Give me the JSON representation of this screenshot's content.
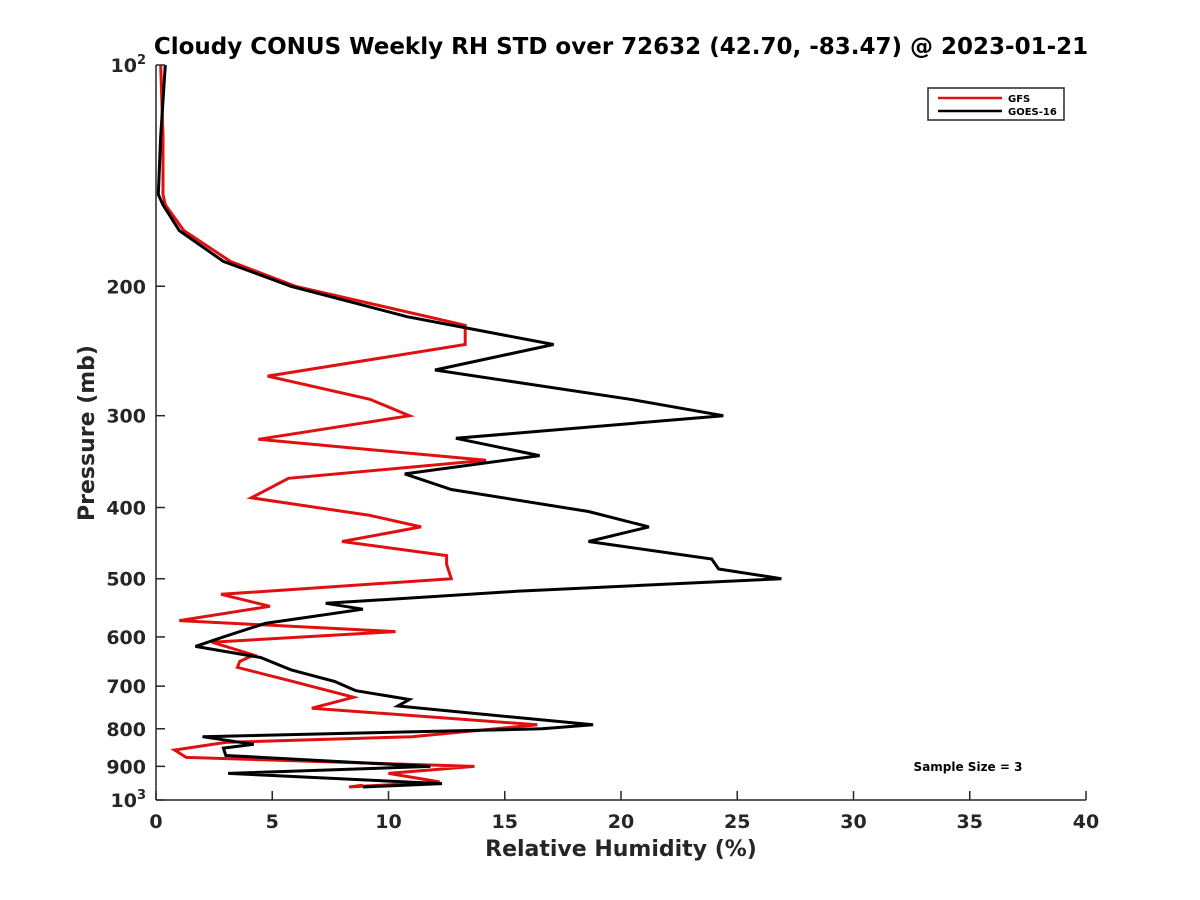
{
  "chart_data": {
    "type": "line",
    "title": "Cloudy CONUS Weekly RH STD over 72632 (42.70, -83.47) @ 2023-01-21",
    "xlabel": "Relative Humidity (%)",
    "ylabel": "Pressure (mb)",
    "xlim": [
      0,
      40
    ],
    "ylim": [
      100,
      1000
    ],
    "y_scale": "log",
    "y_reversed": true,
    "grid": false,
    "legend_placement": "top-right",
    "x_ticks": [
      0,
      5,
      10,
      15,
      20,
      25,
      30,
      35,
      40
    ],
    "y_ticks": [
      {
        "value": 100,
        "label": "10",
        "sup": "2"
      },
      {
        "value": 200,
        "label": "200"
      },
      {
        "value": 300,
        "label": "300"
      },
      {
        "value": 400,
        "label": "400"
      },
      {
        "value": 500,
        "label": "500"
      },
      {
        "value": 600,
        "label": "600"
      },
      {
        "value": 700,
        "label": "700"
      },
      {
        "value": 800,
        "label": "800"
      },
      {
        "value": 900,
        "label": "900"
      },
      {
        "value": 1000,
        "label": "10",
        "sup": "3"
      }
    ],
    "annotation": "Sample Size = 3",
    "series": [
      {
        "name": "GFS",
        "color": "#e01010",
        "points": [
          [
            0.2,
            100
          ],
          [
            0.3,
            125
          ],
          [
            0.3,
            150
          ],
          [
            0.4,
            155
          ],
          [
            1.2,
            168
          ],
          [
            3.2,
            185
          ],
          [
            6.0,
            200
          ],
          [
            13.3,
            226
          ],
          [
            13.3,
            240
          ],
          [
            4.8,
            265
          ],
          [
            9.2,
            285
          ],
          [
            10.9,
            300
          ],
          [
            4.4,
            323
          ],
          [
            14.2,
            345
          ],
          [
            5.7,
            365
          ],
          [
            4.1,
            388
          ],
          [
            9.2,
            410
          ],
          [
            11.4,
            425
          ],
          [
            8.0,
            445
          ],
          [
            12.5,
            465
          ],
          [
            12.5,
            478
          ],
          [
            12.7,
            500
          ],
          [
            2.8,
            525
          ],
          [
            4.9,
            545
          ],
          [
            1.0,
            570
          ],
          [
            10.3,
            590
          ],
          [
            2.4,
            610
          ],
          [
            3.5,
            625
          ],
          [
            4.2,
            635
          ],
          [
            3.6,
            648
          ],
          [
            3.5,
            660
          ],
          [
            5.9,
            690
          ],
          [
            8.5,
            725
          ],
          [
            6.7,
            750
          ],
          [
            16.4,
            790
          ],
          [
            11.0,
            820
          ],
          [
            3.0,
            835
          ],
          [
            0.8,
            855
          ],
          [
            1.3,
            875
          ],
          [
            13.7,
            900
          ],
          [
            10.0,
            920
          ],
          [
            12.2,
            945
          ],
          [
            8.3,
            960
          ],
          [
            8.9,
            955
          ]
        ]
      },
      {
        "name": "GOES-16",
        "color": "#000000",
        "points": [
          [
            0.4,
            100
          ],
          [
            0.2,
            125
          ],
          [
            0.1,
            150
          ],
          [
            0.3,
            155
          ],
          [
            1.0,
            168
          ],
          [
            2.9,
            185
          ],
          [
            5.8,
            200
          ],
          [
            10.8,
            220
          ],
          [
            17.1,
            240
          ],
          [
            12.0,
            260
          ],
          [
            20.4,
            285
          ],
          [
            24.4,
            300
          ],
          [
            12.9,
            322
          ],
          [
            16.5,
            340
          ],
          [
            10.7,
            360
          ],
          [
            12.7,
            378
          ],
          [
            18.6,
            405
          ],
          [
            21.2,
            425
          ],
          [
            18.6,
            445
          ],
          [
            23.9,
            470
          ],
          [
            24.2,
            485
          ],
          [
            26.9,
            500
          ],
          [
            15.5,
            520
          ],
          [
            7.3,
            540
          ],
          [
            8.9,
            550
          ],
          [
            4.7,
            575
          ],
          [
            2.9,
            600
          ],
          [
            1.7,
            618
          ],
          [
            4.5,
            640
          ],
          [
            5.8,
            665
          ],
          [
            7.7,
            690
          ],
          [
            8.6,
            710
          ],
          [
            10.9,
            730
          ],
          [
            10.4,
            745
          ],
          [
            18.8,
            790
          ],
          [
            16.6,
            800
          ],
          [
            2.0,
            820
          ],
          [
            4.2,
            840
          ],
          [
            2.9,
            850
          ],
          [
            3.0,
            870
          ],
          [
            11.8,
            900
          ],
          [
            3.1,
            920
          ],
          [
            12.3,
            950
          ],
          [
            8.9,
            960
          ]
        ]
      }
    ]
  }
}
